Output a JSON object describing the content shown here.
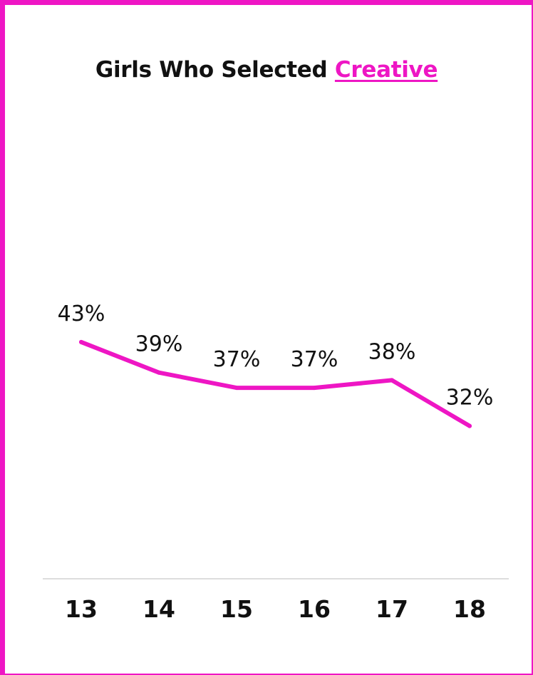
{
  "chart_data": {
    "type": "line",
    "title_prefix": "Girls Who Selected ",
    "title_highlight": "Creative",
    "categories": [
      "13",
      "14",
      "15",
      "16",
      "17",
      "18"
    ],
    "values": [
      43,
      39,
      37,
      37,
      38,
      32
    ],
    "data_labels": [
      "43%",
      "39%",
      "37%",
      "37%",
      "38%",
      "32%"
    ],
    "ylim": [
      0,
      72
    ],
    "grid": false,
    "accent_color": "#ee16c4"
  }
}
